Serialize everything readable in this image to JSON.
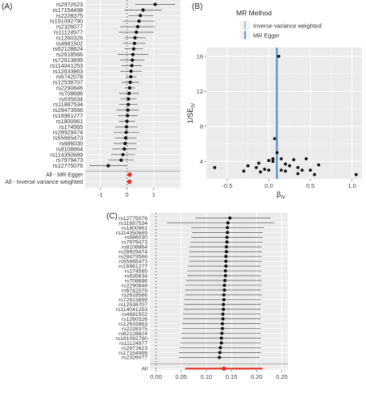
{
  "chart_data": [
    {
      "panel_label": "(A)",
      "type": "forest",
      "categories": [
        "rs2972623",
        "rs17154498",
        "rs2228375",
        "rs191092790",
        "rs2326077",
        "rs11124977",
        "rs1260326",
        "rs4681502",
        "rs62128824",
        "rs2618566",
        "rs72613899",
        "rs114041253",
        "rs12633863",
        "rs6742078",
        "rs12538707",
        "rs2290846",
        "rs708686",
        "rs635634",
        "rs11887534",
        "rs28473566",
        "rs16961277",
        "rs1800961",
        "rs174565",
        "rs28929474",
        "rs55665473",
        "rs686030",
        "rs8108864",
        "rs114350689",
        "rs7979473",
        "rs12775076"
      ],
      "estimates": [
        1.05,
        0.6,
        0.5,
        0.45,
        0.4,
        0.35,
        0.3,
        0.28,
        0.25,
        0.22,
        0.2,
        0.18,
        0.15,
        0.14,
        0.12,
        0.1,
        0.08,
        0.06,
        0.05,
        0.03,
        0.02,
        0.0,
        -0.02,
        -0.03,
        -0.05,
        -0.07,
        -0.1,
        -0.15,
        -0.22,
        -0.7
      ],
      "lower": [
        0.3,
        -0.1,
        0.05,
        -0.15,
        -0.25,
        -0.3,
        -0.1,
        -0.15,
        -0.1,
        -0.35,
        -0.25,
        -0.2,
        -0.25,
        -0.05,
        -0.2,
        -0.1,
        -0.3,
        -0.25,
        -0.3,
        -0.4,
        -0.35,
        -0.3,
        -0.45,
        -0.5,
        -0.45,
        -0.5,
        -0.55,
        -0.6,
        -0.7,
        -1.4
      ],
      "upper": [
        1.8,
        1.3,
        1.0,
        1.05,
        1.05,
        1.0,
        0.7,
        0.7,
        0.6,
        0.8,
        0.65,
        0.55,
        0.55,
        0.35,
        0.45,
        0.3,
        0.45,
        0.35,
        0.4,
        0.45,
        0.4,
        0.3,
        0.4,
        0.45,
        0.35,
        0.35,
        0.35,
        0.3,
        0.25,
        0.0
      ],
      "summary": [
        {
          "label": "All - MR Egger",
          "estimate": 0.1,
          "lower": 0.04,
          "upper": 0.16
        },
        {
          "label": "All - Inverse variance weighted",
          "estimate": 0.09,
          "lower": 0.05,
          "upper": 0.13
        }
      ],
      "summary_color": "#e8281c",
      "xticks": [
        -1,
        0,
        1
      ],
      "xlim": [
        -1.55,
        2.0
      ],
      "reference_line": 0,
      "grid": true
    },
    {
      "panel_label": "(B)",
      "type": "scatter",
      "xlabel_main": "β",
      "xlabel_sub": "IV",
      "ylabel_main": "1/SE",
      "ylabel_sub": "IV",
      "points": [
        {
          "x": 0.12,
          "y": 16.0
        },
        {
          "x": 0.07,
          "y": 6.6
        },
        {
          "x": -0.65,
          "y": 3.3
        },
        {
          "x": -0.3,
          "y": 2.9
        },
        {
          "x": -0.25,
          "y": 3.5
        },
        {
          "x": -0.15,
          "y": 3.3
        },
        {
          "x": -0.12,
          "y": 3.8
        },
        {
          "x": -0.1,
          "y": 2.8
        },
        {
          "x": -0.05,
          "y": 3.1
        },
        {
          "x": 0.0,
          "y": 3.0
        },
        {
          "x": 0.0,
          "y": 4.1
        },
        {
          "x": 0.05,
          "y": 4.3
        },
        {
          "x": 0.05,
          "y": 4.0
        },
        {
          "x": 0.1,
          "y": 5.0
        },
        {
          "x": 0.15,
          "y": 4.3
        },
        {
          "x": 0.15,
          "y": 3.0
        },
        {
          "x": 0.2,
          "y": 3.7
        },
        {
          "x": 0.2,
          "y": 2.9
        },
        {
          "x": 0.25,
          "y": 3.5
        },
        {
          "x": 0.3,
          "y": 4.2
        },
        {
          "x": 0.35,
          "y": 3.3
        },
        {
          "x": 0.35,
          "y": 2.6
        },
        {
          "x": 0.45,
          "y": 4.3
        },
        {
          "x": 0.5,
          "y": 3.0
        },
        {
          "x": 0.55,
          "y": 2.5
        },
        {
          "x": 0.6,
          "y": 3.6
        },
        {
          "x": 0.4,
          "y": 3.0
        },
        {
          "x": 1.05,
          "y": 2.5
        }
      ],
      "xticks": [
        -0.5,
        0.0,
        0.5,
        1.0
      ],
      "xtick_labels": [
        "-0.5",
        "0.0",
        "0.5",
        "1.0"
      ],
      "yticks": [
        4,
        8,
        12,
        16
      ],
      "xlim": [
        -0.75,
        1.12
      ],
      "ylim": [
        2.0,
        17.0
      ],
      "legend": {
        "title": "MR Method",
        "position": "top",
        "entries": [
          {
            "label": "Inverse variance weighted",
            "color": "#7fb9d9",
            "x": 0.09
          },
          {
            "label": "MR Egger",
            "color": "#2d6fb5",
            "x": 0.1
          }
        ]
      },
      "grid": true
    },
    {
      "panel_label": "(C)",
      "type": "forest",
      "categories": [
        "rs12775076",
        "rs11887534",
        "rs1800961",
        "rs114350689",
        "rs686030",
        "rs7979473",
        "rs8108864",
        "rs28929474",
        "rs28473566",
        "rs55665473",
        "rs16961277",
        "rs174565",
        "rs635634",
        "rs708686",
        "rs2290846",
        "rs6742078",
        "rs2618566",
        "rs72613899",
        "rs12538707",
        "rs114041253",
        "rs4681502",
        "rs1260326",
        "rs12633863",
        "rs2228375",
        "rs62128824",
        "rs191092790",
        "rs11124977",
        "rs2972623",
        "rs17154498",
        "rs2326077"
      ],
      "estimates": [
        0.147,
        0.143,
        0.142,
        0.142,
        0.141,
        0.141,
        0.14,
        0.14,
        0.139,
        0.139,
        0.139,
        0.138,
        0.138,
        0.137,
        0.136,
        0.136,
        0.135,
        0.135,
        0.134,
        0.134,
        0.133,
        0.133,
        0.132,
        0.132,
        0.131,
        0.13,
        0.13,
        0.128,
        0.127,
        0.126
      ],
      "lower": [
        0.078,
        0.022,
        0.07,
        0.072,
        0.07,
        0.068,
        0.066,
        0.066,
        0.066,
        0.066,
        0.064,
        0.062,
        0.062,
        0.06,
        0.058,
        0.058,
        0.058,
        0.056,
        0.056,
        0.055,
        0.054,
        0.054,
        0.052,
        0.052,
        0.05,
        0.05,
        0.048,
        0.047,
        0.046,
        0.046
      ],
      "upper": [
        0.228,
        0.235,
        0.215,
        0.212,
        0.212,
        0.212,
        0.21,
        0.21,
        0.21,
        0.21,
        0.208,
        0.21,
        0.208,
        0.21,
        0.21,
        0.208,
        0.21,
        0.208,
        0.208,
        0.208,
        0.208,
        0.208,
        0.208,
        0.208,
        0.208,
        0.208,
        0.208,
        0.208,
        0.208,
        0.206
      ],
      "summary": [
        {
          "label": "All",
          "estimate": 0.135,
          "lower": 0.058,
          "upper": 0.212
        }
      ],
      "summary_color": "#e8281c",
      "xticks": [
        0.0,
        0.05,
        0.1,
        0.15,
        0.2,
        0.25
      ],
      "xtick_labels": [
        "0.00",
        "0.05",
        "0.10",
        "0.15",
        "0.20",
        "0.25"
      ],
      "xlim": [
        -0.012,
        0.262
      ],
      "reference_line": 0,
      "grid": true
    }
  ]
}
